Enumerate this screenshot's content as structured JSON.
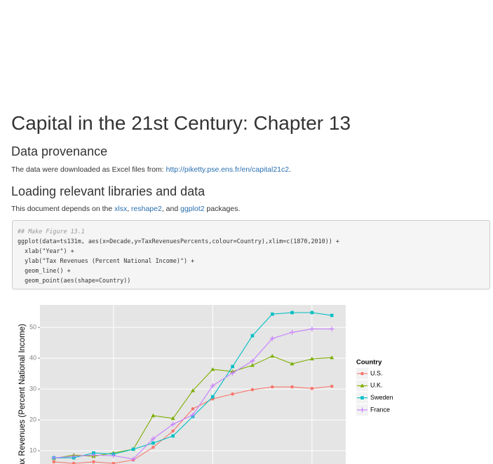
{
  "header": {
    "title": "Capital in the 21st Century: Chapter 13"
  },
  "sections": [
    {
      "heading": "Data provenance",
      "parts": [
        {
          "text": "The data were downloaded as Excel files from: "
        },
        {
          "text": "http://piketty.pse.ens.fr/en/capital21c2",
          "link": true
        },
        {
          "text": "."
        }
      ]
    },
    {
      "heading": "Loading relevant libraries and data",
      "parts": [
        {
          "text": "This document depends on the "
        },
        {
          "text": "xlsx",
          "link": true
        },
        {
          "text": ", "
        },
        {
          "text": "reshape2",
          "link": true
        },
        {
          "text": ", and "
        },
        {
          "text": "ggplot2",
          "link": true
        },
        {
          "text": " packages."
        }
      ]
    }
  ],
  "code": {
    "lines": [
      "## Make Figure 13.1",
      "ggplot(data=ts131m, aes(x=Decade,y=TaxRevenuesPercents,colour=Country),xlim=c(1870,2010)) +",
      "  xlab(\"Year\") +",
      "  ylab(\"Tax Revenues (Percent National Income)\") +",
      "  geom_line() +",
      "  geom_point(aes(shape=Country))"
    ]
  },
  "chart_data": {
    "type": "line",
    "y_label": "Tax Revenues (Percent National Income)",
    "x": [
      1870,
      1880,
      1890,
      1900,
      1910,
      1920,
      1930,
      1940,
      1950,
      1960,
      1970,
      1980,
      1990,
      2000,
      2010
    ],
    "xlim": [
      1863,
      2017
    ],
    "xticks": [
      1900,
      1950,
      2000
    ],
    "ylim": [
      5.7,
      57.3
    ],
    "yticks": [
      10,
      20,
      30,
      40,
      50
    ],
    "grid": true,
    "legend_title": "Country",
    "series": [
      {
        "name": "U.S.",
        "color": "#F8766D",
        "marker": "circle",
        "values": [
          6.4,
          5.9,
          6.4,
          5.9,
          7.0,
          11.1,
          16.4,
          23.6,
          26.8,
          28.4,
          29.8,
          30.7,
          30.7,
          30.2,
          30.9
        ]
      },
      {
        "name": "U.K.",
        "color": "#7CAE00",
        "marker": "triangle",
        "values": [
          7.5,
          8.6,
          8.2,
          9.3,
          10.5,
          21.4,
          20.5,
          29.5,
          36.4,
          35.7,
          37.7,
          40.7,
          38.2,
          39.8,
          40.2
        ]
      },
      {
        "name": "Sweden",
        "color": "#00BFC4",
        "marker": "square",
        "values": [
          7.7,
          7.7,
          9.3,
          8.9,
          10.5,
          12.5,
          14.8,
          21.1,
          27.5,
          37.3,
          47.3,
          54.3,
          54.8,
          54.8,
          53.9
        ]
      },
      {
        "name": "France",
        "color": "#C77CFF",
        "marker": "plus",
        "values": [
          7.7,
          8.2,
          8.6,
          8.4,
          7.3,
          13.9,
          18.6,
          21.6,
          31.1,
          35.2,
          39.1,
          46.4,
          48.4,
          49.5,
          49.5
        ]
      }
    ]
  }
}
